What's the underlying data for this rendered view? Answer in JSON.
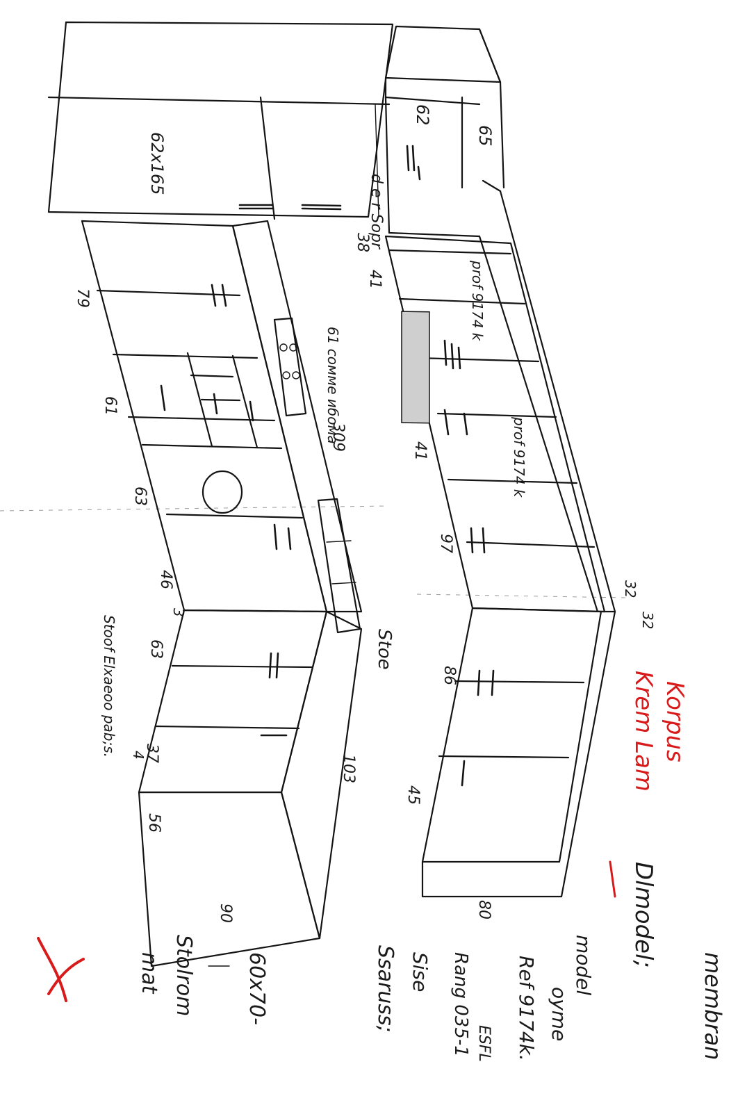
{
  "labels": {
    "tall_cabinet": "62x165",
    "top_cabinet": "62",
    "top_right": "65",
    "corner_note": "d e r Sopr",
    "w38": "38",
    "w41a": "41",
    "rack1": "prof 9174 k",
    "w79": "79",
    "w61": "61",
    "corner_unit": "61 сомме ибома",
    "w309": "309",
    "w41b": "41",
    "rack2": "prof 9174 k",
    "w63": "63",
    "w97": "97",
    "w46": "46",
    "w3": "3",
    "w63b": "63",
    "side_note": "Stoof Elxaeoo pab;s.",
    "arrow_marker": "4",
    "w86": "86",
    "stoe": "Stoe",
    "w37": "37",
    "w103": "103",
    "w45": "45",
    "w56": "56",
    "w32a": "32",
    "w32b": "32",
    "w80": "80",
    "w90": "90"
  },
  "notes": {
    "korpus": "Korpus",
    "krem": "Krem Lam",
    "membran": "membran",
    "model_line": "Dlmodel;",
    "model": "model",
    "oyme": "oyme",
    "ref": "Ref 9174k.",
    "esfl": "ESFL",
    "code": "Rang 035-1",
    "sise": "Sise",
    "ssaruss": "Ssaruss;",
    "dims": "60x70-",
    "stol": "Stolrom",
    "mat": "mat"
  },
  "colors": {
    "ink": "#141414",
    "accent": "#d81a1a"
  }
}
